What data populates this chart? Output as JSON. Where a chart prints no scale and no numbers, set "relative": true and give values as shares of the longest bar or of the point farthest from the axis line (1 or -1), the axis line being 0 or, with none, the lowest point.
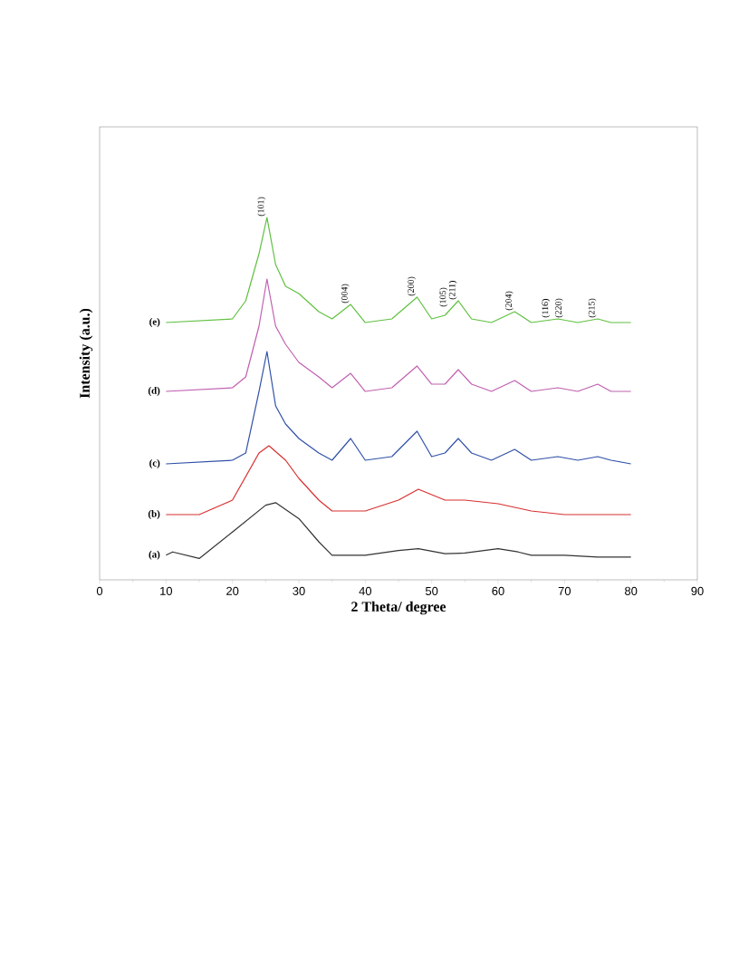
{
  "chart_data": {
    "type": "line",
    "xlabel": "2 Theta/ degree",
    "ylabel": "Intensity (a.u.)",
    "relative": true,
    "xlim": [
      0,
      90
    ],
    "xticks": [
      0,
      10,
      20,
      30,
      40,
      50,
      60,
      70,
      80,
      90
    ],
    "series": [
      {
        "name": "(a)",
        "color": "#333333",
        "x": [
          10,
          11,
          15,
          20,
          25,
          26.5,
          30,
          33,
          35,
          40,
          45,
          48,
          52,
          55,
          60,
          63,
          65,
          70,
          75,
          80
        ],
        "values": [
          0.068,
          0.077,
          0.059,
          0.132,
          0.206,
          0.213,
          0.169,
          0.105,
          0.068,
          0.068,
          0.081,
          0.086,
          0.072,
          0.074,
          0.086,
          0.077,
          0.068,
          0.068,
          0.063,
          0.063
        ]
      },
      {
        "name": "(b)",
        "color": "#d83030",
        "x": [
          10,
          15,
          20,
          24,
          25.5,
          28,
          30,
          33,
          35,
          40,
          45,
          48,
          52,
          55,
          60,
          65,
          70,
          80
        ],
        "values": [
          0.18,
          0.18,
          0.22,
          0.35,
          0.37,
          0.33,
          0.28,
          0.22,
          0.19,
          0.19,
          0.22,
          0.25,
          0.22,
          0.22,
          0.21,
          0.19,
          0.18,
          0.18
        ]
      },
      {
        "name": "(c)",
        "color": "#3050a8",
        "x": [
          10,
          20,
          22,
          24,
          25.2,
          26.5,
          28,
          30,
          33,
          35,
          37.8,
          40,
          44,
          47.8,
          50,
          52,
          54,
          56,
          59,
          62.5,
          65,
          69,
          72,
          75,
          77,
          80
        ],
        "values": [
          0.32,
          0.33,
          0.35,
          0.52,
          0.63,
          0.48,
          0.43,
          0.39,
          0.35,
          0.33,
          0.39,
          0.33,
          0.34,
          0.41,
          0.34,
          0.35,
          0.39,
          0.35,
          0.33,
          0.36,
          0.33,
          0.34,
          0.33,
          0.34,
          0.33,
          0.32
        ]
      },
      {
        "name": "(d)",
        "color": "#c060b0",
        "x": [
          10,
          20,
          22,
          24,
          25.2,
          26.5,
          28,
          30,
          33,
          35,
          37.8,
          40,
          44,
          47.8,
          50,
          52,
          54,
          56,
          59,
          62.5,
          65,
          69,
          72,
          75,
          77,
          80
        ],
        "values": [
          0.52,
          0.53,
          0.56,
          0.7,
          0.83,
          0.7,
          0.65,
          0.6,
          0.56,
          0.53,
          0.57,
          0.52,
          0.53,
          0.59,
          0.54,
          0.54,
          0.58,
          0.54,
          0.52,
          0.55,
          0.52,
          0.53,
          0.52,
          0.54,
          0.52,
          0.52
        ]
      },
      {
        "name": "(e)",
        "color": "#60c040",
        "x": [
          10,
          20,
          22,
          24,
          25.2,
          26.5,
          28,
          30,
          33,
          35,
          37.8,
          40,
          44,
          47.8,
          50,
          52,
          54,
          56,
          59,
          62.5,
          65,
          69,
          72,
          75,
          77,
          80
        ],
        "values": [
          0.71,
          0.72,
          0.77,
          0.9,
          1.0,
          0.87,
          0.81,
          0.79,
          0.74,
          0.72,
          0.76,
          0.71,
          0.72,
          0.78,
          0.72,
          0.73,
          0.77,
          0.72,
          0.71,
          0.74,
          0.71,
          0.72,
          0.71,
          0.72,
          0.71,
          0.71
        ]
      }
    ],
    "annotations": [
      {
        "text": "(101)",
        "x": 25.2,
        "y": 1.0
      },
      {
        "text": "(004)",
        "x": 37.8,
        "y": 0.76
      },
      {
        "text": "(200)",
        "x": 47.8,
        "y": 0.78
      },
      {
        "text": "(105)",
        "x": 52.6,
        "y": 0.75
      },
      {
        "text": "(211)",
        "x": 54,
        "y": 0.77
      },
      {
        "text": "(204)",
        "x": 62.5,
        "y": 0.74
      },
      {
        "text": "(116)",
        "x": 68,
        "y": 0.72
      },
      {
        "text": "(220)",
        "x": 70,
        "y": 0.72
      },
      {
        "text": "(215)",
        "x": 75,
        "y": 0.72
      }
    ]
  }
}
